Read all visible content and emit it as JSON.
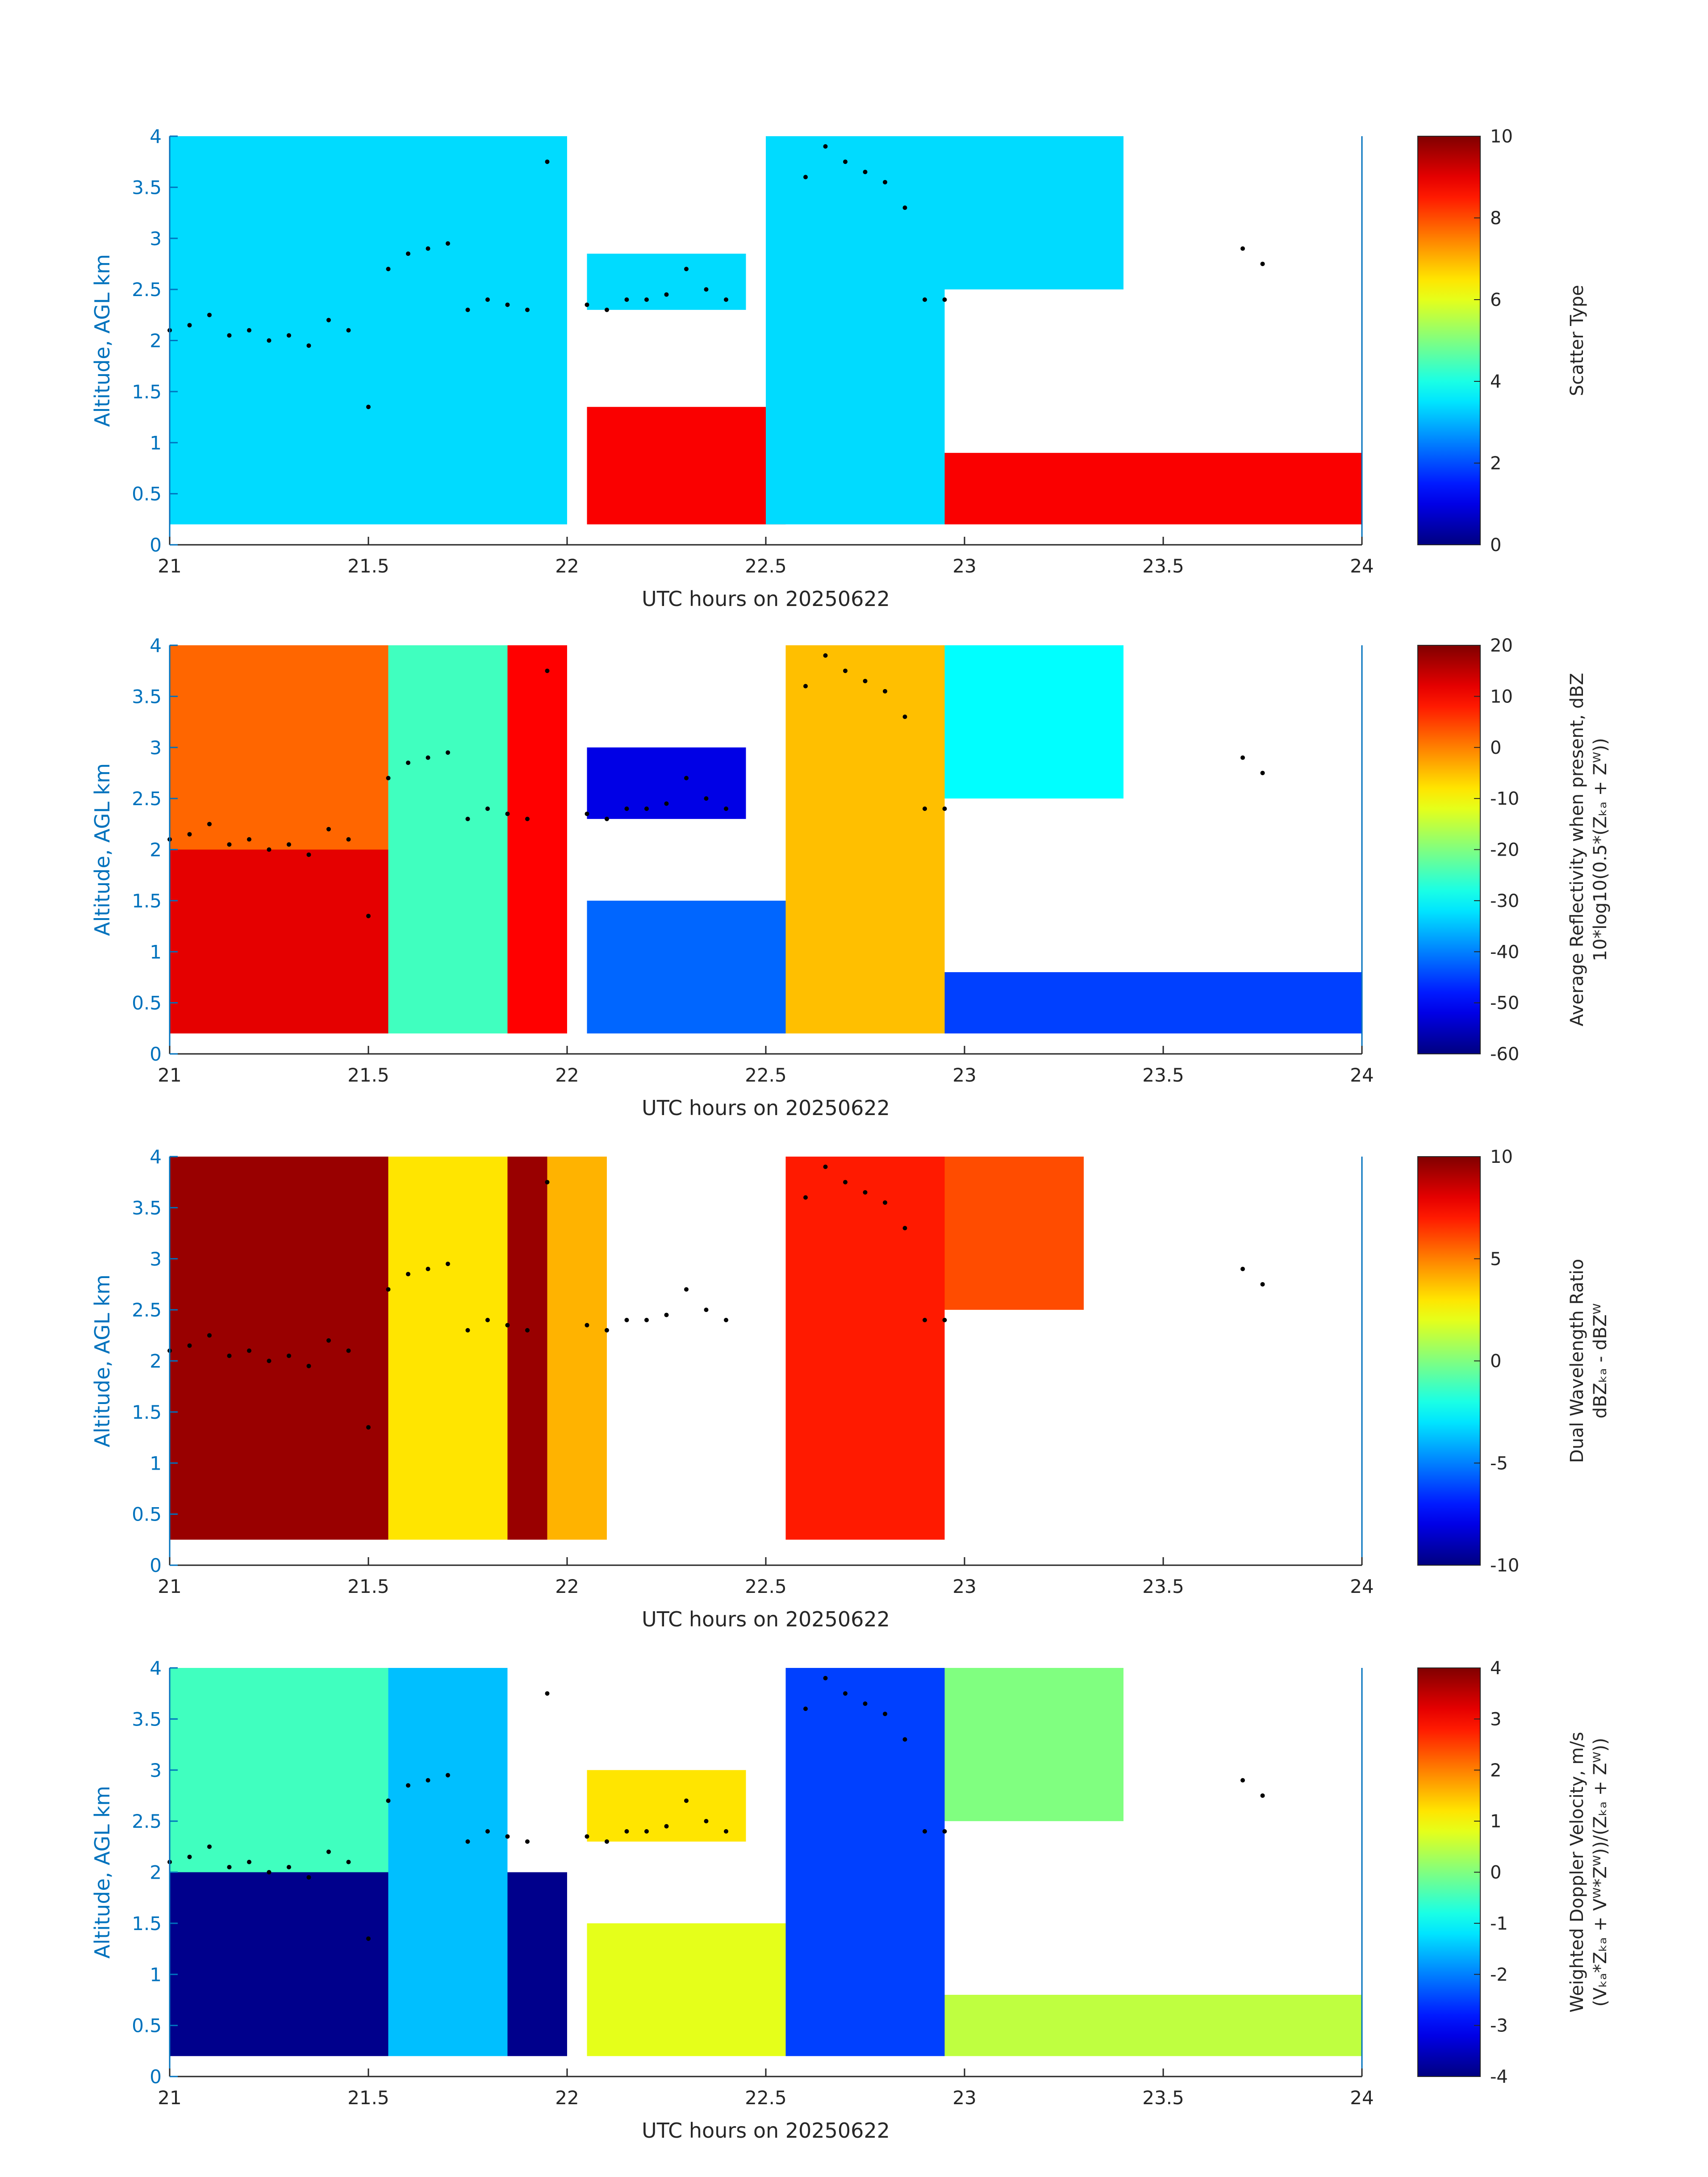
{
  "chart_data": [
    {
      "type": "heatmap",
      "xlabel": "UTC hours on 20250622",
      "ylabel": "Altitude, AGL km",
      "xlim": [
        21,
        24
      ],
      "ylim": [
        0,
        4
      ],
      "x_ticks": [
        "21",
        "21.5",
        "22",
        "22.5",
        "23",
        "23.5",
        "24"
      ],
      "y_ticks": [
        "0",
        "0.5",
        "1",
        "1.5",
        "2",
        "2.5",
        "3",
        "3.5",
        "4"
      ],
      "colorbar": {
        "label_lines": [
          "Scatter Type"
        ],
        "range": [
          0,
          10
        ],
        "ticks": [
          "0",
          "2",
          "4",
          "6",
          "8",
          "10"
        ]
      },
      "regions": [
        {
          "x": [
            21.0,
            22.0
          ],
          "y": [
            0.2,
            4.0
          ],
          "value": 3.4
        },
        {
          "x": [
            22.05,
            22.55
          ],
          "y": [
            0.2,
            1.35
          ],
          "value": 8.8
        },
        {
          "x": [
            22.05,
            22.45
          ],
          "y": [
            2.3,
            2.85
          ],
          "value": 3.4
        },
        {
          "x": [
            22.5,
            22.95
          ],
          "y": [
            0.2,
            4.0
          ],
          "value": 3.4
        },
        {
          "x": [
            22.95,
            24.0
          ],
          "y": [
            0.2,
            0.9
          ],
          "value": 8.8
        },
        {
          "x": [
            22.95,
            23.4
          ],
          "y": [
            2.5,
            4.0
          ],
          "value": 3.4
        }
      ]
    },
    {
      "type": "heatmap",
      "xlabel": "UTC hours on 20250622",
      "ylabel": "Altitude, AGL km",
      "xlim": [
        21,
        24
      ],
      "ylim": [
        0,
        4
      ],
      "x_ticks": [
        "21",
        "21.5",
        "22",
        "22.5",
        "23",
        "23.5",
        "24"
      ],
      "y_ticks": [
        "0",
        "0.5",
        "1",
        "1.5",
        "2",
        "2.5",
        "3",
        "3.5",
        "4"
      ],
      "colorbar": {
        "label_lines": [
          "Average Reflectivity when present, dBZ",
          "10*log10(0.5*(Zₖₐ + Zᵂ))"
        ],
        "range": [
          -60,
          20
        ],
        "ticks": [
          "-60",
          "-50",
          "-40",
          "-30",
          "-20",
          "-10",
          "0",
          "10",
          "20"
        ]
      },
      "regions": [
        {
          "x": [
            21.0,
            21.55
          ],
          "y": [
            2.0,
            4.0
          ],
          "value": 2
        },
        {
          "x": [
            21.0,
            21.55
          ],
          "y": [
            0.2,
            2.0
          ],
          "value": 12
        },
        {
          "x": [
            21.55,
            21.85
          ],
          "y": [
            0.2,
            4.0
          ],
          "value": -25
        },
        {
          "x": [
            21.85,
            22.0
          ],
          "y": [
            0.2,
            4.0
          ],
          "value": 10
        },
        {
          "x": [
            22.05,
            22.45
          ],
          "y": [
            2.3,
            3.0
          ],
          "value": -52
        },
        {
          "x": [
            22.05,
            22.55
          ],
          "y": [
            0.2,
            1.5
          ],
          "value": -42
        },
        {
          "x": [
            22.55,
            22.95
          ],
          "y": [
            0.2,
            4.0
          ],
          "value": -5
        },
        {
          "x": [
            22.95,
            24.0
          ],
          "y": [
            0.2,
            0.8
          ],
          "value": -45
        },
        {
          "x": [
            22.95,
            23.4
          ],
          "y": [
            2.5,
            4.0
          ],
          "value": -30
        }
      ]
    },
    {
      "type": "heatmap",
      "xlabel": "UTC hours on 20250622",
      "ylabel": "Altitude, AGL km",
      "xlim": [
        21,
        24
      ],
      "ylim": [
        0,
        4
      ],
      "x_ticks": [
        "21",
        "21.5",
        "22",
        "22.5",
        "23",
        "23.5",
        "24"
      ],
      "y_ticks": [
        "0",
        "0.5",
        "1",
        "1.5",
        "2",
        "2.5",
        "3",
        "3.5",
        "4"
      ],
      "colorbar": {
        "label_lines": [
          "Dual Wavelength Ratio",
          "dBZₖₐ - dBZᵂ"
        ],
        "range": [
          -10,
          10
        ],
        "ticks": [
          "-10",
          "-5",
          "0",
          "5",
          "10"
        ]
      },
      "regions": [
        {
          "x": [
            21.0,
            21.55
          ],
          "y": [
            0.25,
            4.0
          ],
          "value": 9.5
        },
        {
          "x": [
            21.55,
            21.85
          ],
          "y": [
            0.25,
            4.0
          ],
          "value": 3
        },
        {
          "x": [
            21.85,
            21.95
          ],
          "y": [
            0.25,
            4.0
          ],
          "value": 9.5
        },
        {
          "x": [
            21.95,
            22.1
          ],
          "y": [
            0.25,
            4.0
          ],
          "value": 4
        },
        {
          "x": [
            22.55,
            22.95
          ],
          "y": [
            0.25,
            4.0
          ],
          "value": 7
        },
        {
          "x": [
            22.95,
            23.3
          ],
          "y": [
            2.5,
            4.0
          ],
          "value": 6
        }
      ]
    },
    {
      "type": "heatmap",
      "xlabel": "UTC hours on 20250622",
      "ylabel": "Altitude, AGL km",
      "xlim": [
        21,
        24
      ],
      "ylim": [
        0,
        4
      ],
      "x_ticks": [
        "21",
        "21.5",
        "22",
        "22.5",
        "23",
        "23.5",
        "24"
      ],
      "y_ticks": [
        "0",
        "0.5",
        "1",
        "1.5",
        "2",
        "2.5",
        "3",
        "3.5",
        "4"
      ],
      "colorbar": {
        "label_lines": [
          "Weighted Doppler Velocity, m/s",
          "(Vₖₐ*Zₖₐ + Vᵂ*Zᵂ))/(Zₖₐ + Zᵂ))"
        ],
        "range": [
          -4,
          4
        ],
        "ticks": [
          "-4",
          "-3",
          "-2",
          "-1",
          "0",
          "1",
          "2",
          "3",
          "4"
        ]
      },
      "regions": [
        {
          "x": [
            21.0,
            21.55
          ],
          "y": [
            2.0,
            4.0
          ],
          "value": -0.5
        },
        {
          "x": [
            21.0,
            21.55
          ],
          "y": [
            0.2,
            2.0
          ],
          "value": -3.9
        },
        {
          "x": [
            21.55,
            21.85
          ],
          "y": [
            0.2,
            4.0
          ],
          "value": -1.5
        },
        {
          "x": [
            21.85,
            22.0
          ],
          "y": [
            0.2,
            2.0
          ],
          "value": -3.9
        },
        {
          "x": [
            22.05,
            22.45
          ],
          "y": [
            2.3,
            3.0
          ],
          "value": 1.2
        },
        {
          "x": [
            22.05,
            22.55
          ],
          "y": [
            0.2,
            1.5
          ],
          "value": 0.8
        },
        {
          "x": [
            22.55,
            22.95
          ],
          "y": [
            0.2,
            4.0
          ],
          "value": -2.5
        },
        {
          "x": [
            22.95,
            24.0
          ],
          "y": [
            0.2,
            0.8
          ],
          "value": 0.5
        },
        {
          "x": [
            22.95,
            23.4
          ],
          "y": [
            2.5,
            4.0
          ],
          "value": 0
        }
      ]
    }
  ],
  "cloud_top_markers": {
    "x": [
      21.0,
      21.05,
      21.1,
      21.15,
      21.2,
      21.25,
      21.3,
      21.35,
      21.4,
      21.45,
      21.5,
      21.55,
      21.6,
      21.65,
      21.7,
      21.75,
      21.8,
      21.85,
      21.9,
      21.95,
      22.05,
      22.1,
      22.15,
      22.2,
      22.25,
      22.3,
      22.35,
      22.4,
      22.6,
      22.65,
      22.7,
      22.75,
      22.8,
      22.85,
      22.9,
      22.95,
      23.7,
      23.75
    ],
    "y": [
      2.1,
      2.15,
      2.25,
      2.05,
      2.1,
      2.0,
      2.05,
      1.95,
      2.2,
      2.1,
      1.35,
      2.7,
      2.85,
      2.9,
      2.95,
      2.3,
      2.4,
      2.35,
      2.3,
      3.75,
      2.35,
      2.3,
      2.4,
      2.4,
      2.45,
      2.7,
      2.5,
      2.4,
      3.6,
      3.9,
      3.75,
      3.65,
      3.55,
      3.3,
      2.4,
      2.4,
      2.9,
      2.75
    ]
  }
}
